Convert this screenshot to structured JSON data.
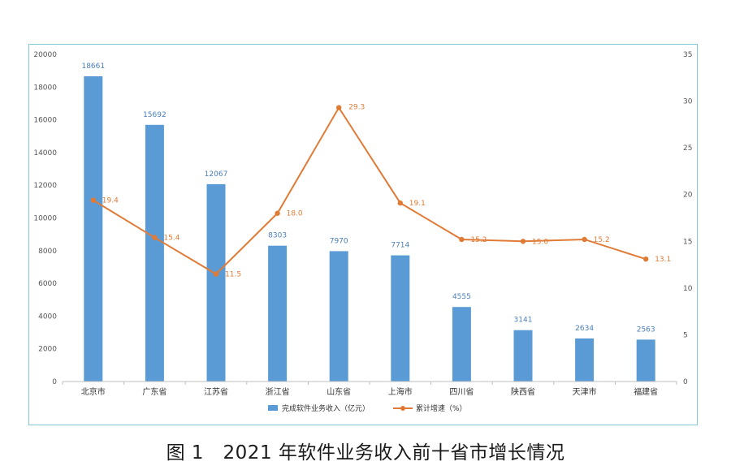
{
  "caption": "图 1　2021 年软件业务收入前十省市增长情况",
  "chart_data": {
    "type": "bar",
    "categories": [
      "北京市",
      "广东省",
      "江苏省",
      "浙江省",
      "山东省",
      "上海市",
      "四川省",
      "陕西省",
      "天津市",
      "福建省"
    ],
    "series": [
      {
        "name": "完成软件业务收入（亿元）",
        "type": "bar",
        "axis": "left",
        "color": "#5b9bd5",
        "values": [
          18661,
          15692,
          12067,
          8303,
          7970,
          7714,
          4555,
          3141,
          2634,
          2563
        ],
        "labels": [
          "18661",
          "15692",
          "12067",
          "8303",
          "7970",
          "7714",
          "4555",
          "3141",
          "2634",
          "2563"
        ]
      },
      {
        "name": "累计增速（%）",
        "type": "line",
        "axis": "right",
        "color": "#e07b36",
        "values": [
          19.4,
          15.4,
          11.5,
          18.0,
          29.3,
          19.1,
          15.2,
          15.0,
          15.2,
          13.1
        ],
        "labels": [
          "19.4",
          "15.4",
          "11.5",
          "18.0",
          "29.3",
          "19.1",
          "15.2",
          "15.0",
          "15.2",
          "13.1"
        ]
      }
    ],
    "y_left": {
      "min": 0,
      "max": 20000,
      "ticks": [
        "0",
        "2000",
        "4000",
        "6000",
        "8000",
        "10000",
        "12000",
        "14000",
        "16000",
        "18000",
        "20000"
      ]
    },
    "y_right": {
      "min": 0,
      "max": 35,
      "ticks": [
        "0",
        "5",
        "10",
        "15",
        "20",
        "25",
        "30",
        "35"
      ]
    },
    "grid": false,
    "legend_position": "bottom"
  }
}
